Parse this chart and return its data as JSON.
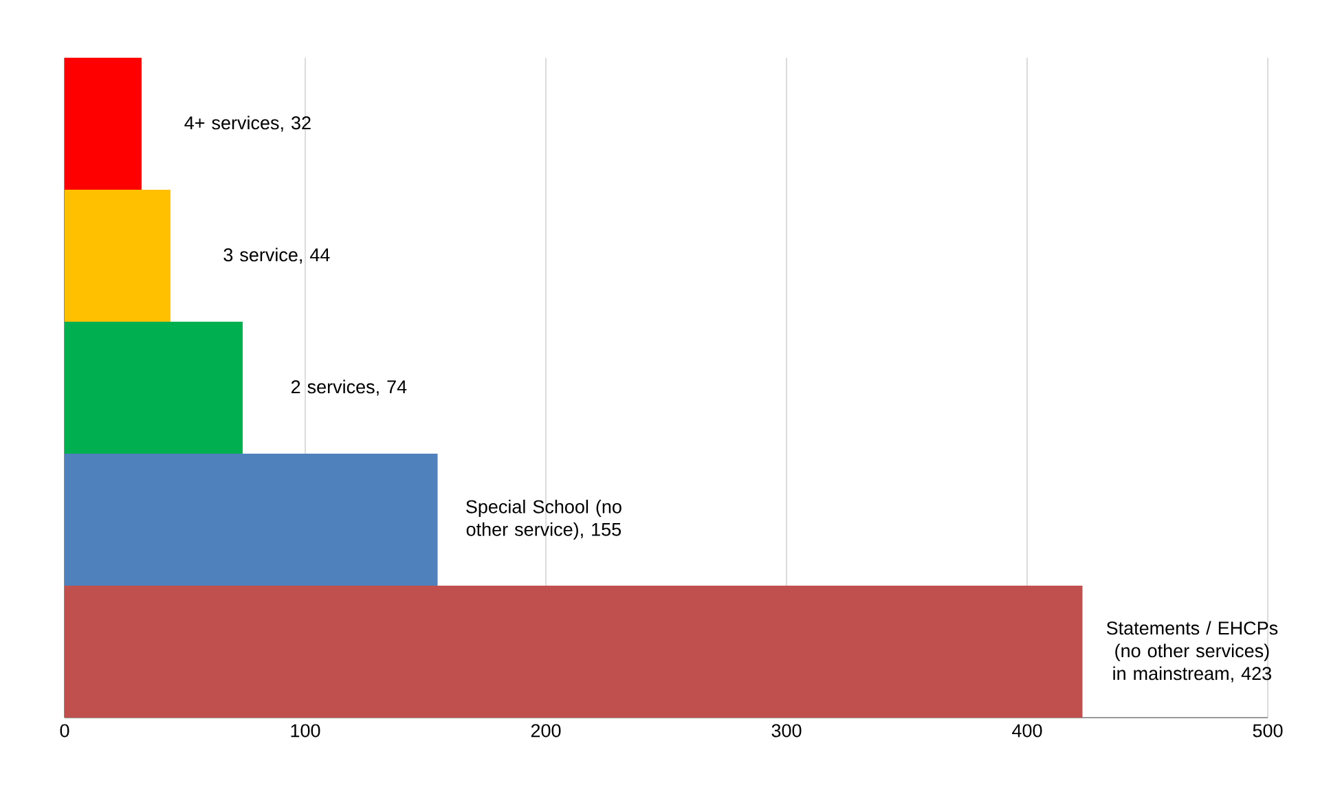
{
  "chart_data": {
    "type": "bar",
    "orientation": "horizontal",
    "categories": [
      null,
      null,
      null,
      null,
      null
    ],
    "values": [
      32,
      44,
      74,
      155,
      423
    ],
    "colors": [
      "#ff0000",
      "#ffc000",
      "#00b050",
      "#4f81bd",
      "#c0504d"
    ],
    "value_labels": [
      "4+ services, 32",
      "3 service, 44",
      "2 services, 74",
      "Special School (no other service), 155",
      "Statements / EHCPs (no other services) in mainstream, 423"
    ],
    "xlim": [
      0,
      500
    ],
    "xticks": [
      0,
      100,
      200,
      300,
      400,
      500
    ],
    "grid": "x"
  }
}
